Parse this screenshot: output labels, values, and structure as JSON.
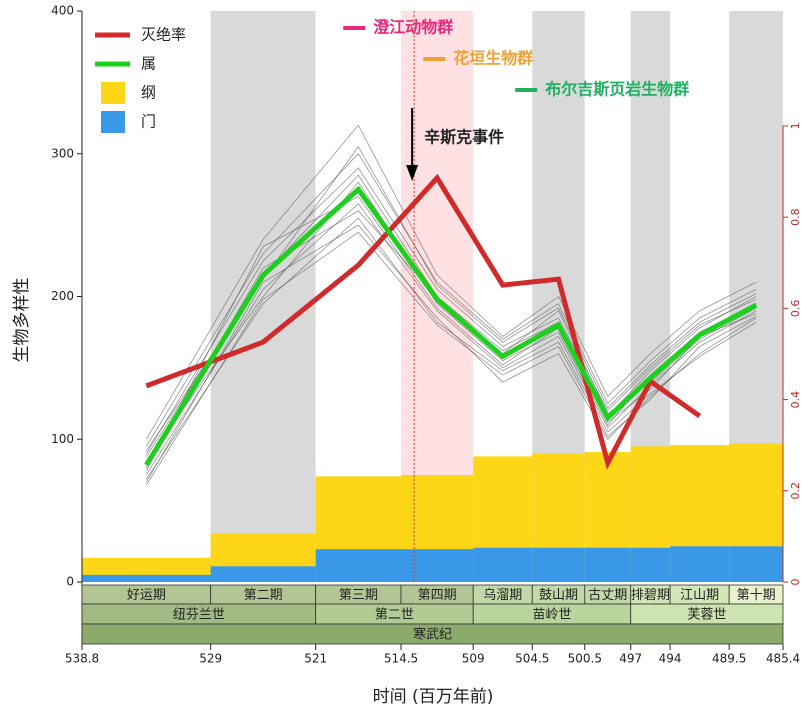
{
  "chart_data": {
    "type": "line",
    "x_label": "时间 (百万年前)",
    "y_label": "生物多样性",
    "xlim": [
      538.8,
      485.4
    ],
    "xticks": [
      538.8,
      529,
      521,
      514.5,
      509,
      504.5,
      500.5,
      497,
      494,
      489.5,
      485.4
    ],
    "ylim": [
      0,
      400
    ],
    "yticks": [
      0,
      100,
      200,
      300,
      400
    ],
    "y2lim": [
      0,
      1.252
    ],
    "y2ticks": [
      0,
      0.2,
      0.4,
      0.6,
      0.8,
      1
    ],
    "y2_color": "#c0282a",
    "x": [
      533.9,
      525,
      517.75,
      511.75,
      506.75,
      502.5,
      498.75,
      495.5,
      491.75,
      487.45
    ],
    "series": [
      {
        "name": "灭绝率",
        "color": "#d12a2a",
        "axis": "y2",
        "values": [
          0.43,
          0.526,
          0.695,
          0.886,
          0.651,
          0.664,
          0.261,
          0.44,
          0.364,
          null
        ]
      },
      {
        "name": "属",
        "color": "#1ed01e",
        "values": [
          82,
          215,
          275,
          198,
          158,
          180,
          115,
          143,
          173,
          194
        ]
      }
    ],
    "areas": [
      {
        "name": "纲",
        "color": "#fdd617",
        "values": [
          17,
          34,
          74,
          75,
          88,
          90,
          91,
          95,
          96,
          97
        ]
      },
      {
        "name": "门",
        "color": "#3a98e8",
        "values": [
          5,
          11,
          23,
          23,
          24,
          24,
          24,
          24,
          25,
          25
        ]
      }
    ],
    "simulations": {
      "color": "#555555",
      "lines": [
        [
          75,
          205,
          265,
          190,
          150,
          172,
          108,
          138,
          168,
          190
        ],
        [
          90,
          225,
          290,
          205,
          165,
          185,
          120,
          150,
          180,
          198
        ],
        [
          70,
          210,
          250,
          185,
          140,
          160,
          100,
          130,
          160,
          185
        ],
        [
          95,
          230,
          300,
          210,
          170,
          195,
          125,
          155,
          185,
          205
        ],
        [
          85,
          200,
          280,
          195,
          155,
          175,
          110,
          145,
          175,
          195
        ],
        [
          80,
          220,
          260,
          200,
          160,
          190,
          118,
          140,
          170,
          192
        ],
        [
          100,
          240,
          320,
          215,
          172,
          200,
          130,
          160,
          190,
          210
        ],
        [
          72,
          195,
          255,
          182,
          148,
          168,
          105,
          132,
          158,
          182
        ],
        [
          88,
          215,
          285,
          200,
          162,
          182,
          116,
          148,
          178,
          200
        ],
        [
          78,
          235,
          270,
          192,
          152,
          178,
          112,
          135,
          172,
          188
        ],
        [
          92,
          212,
          305,
          208,
          168,
          192,
          122,
          152,
          182,
          202
        ],
        [
          68,
          198,
          245,
          180,
          145,
          165,
          102,
          128,
          165,
          186
        ]
      ]
    },
    "stages": [
      {
        "name": "好运期",
        "start": 538.8,
        "end": 529,
        "background": "#ffffff",
        "color": "#b3c594"
      },
      {
        "name": "第二期",
        "start": 529,
        "end": 521,
        "background": "#d9d9d9",
        "color": "#b3c594"
      },
      {
        "name": "第三期",
        "start": 521,
        "end": 514.5,
        "background": "#ffffff",
        "color": "#b3c594"
      },
      {
        "name": "第四期",
        "start": 514.5,
        "end": 509,
        "background": "#ffe1e4",
        "color": "#b3c594"
      },
      {
        "name": "乌溜期",
        "start": 509,
        "end": 504.5,
        "background": "#ffffff",
        "color": "#c3d8a8"
      },
      {
        "name": "鼓山期",
        "start": 504.5,
        "end": 500.5,
        "background": "#d9d9d9",
        "color": "#c3d8a8"
      },
      {
        "name": "古丈期",
        "start": 500.5,
        "end": 497,
        "background": "#ffffff",
        "color": "#c3d8a8"
      },
      {
        "name": "排碧期",
        "start": 497,
        "end": 494,
        "background": "#d9d9d9",
        "color": "#d3e6b8"
      },
      {
        "name": "江山期",
        "start": 494,
        "end": 489.5,
        "background": "#ffffff",
        "color": "#d3e6b8"
      },
      {
        "name": "第十期",
        "start": 489.5,
        "end": 485.4,
        "background": "#d9d9d9",
        "color": "#e8f2cc"
      }
    ],
    "epochs": [
      {
        "name": "纽芬兰世",
        "start": 538.8,
        "end": 521,
        "color": "#a2bb84"
      },
      {
        "name": "第二世",
        "start": 521,
        "end": 509,
        "color": "#b2cb94"
      },
      {
        "name": "苗岭世",
        "start": 509,
        "end": 497,
        "color": "#b8d59e"
      },
      {
        "name": "芙蓉世",
        "start": 497,
        "end": 485.4,
        "color": "#cde4b0"
      }
    ],
    "period": {
      "name": "寒武纪",
      "start": 538.8,
      "end": 485.4,
      "color": "#8bab6b"
    },
    "event": {
      "label": "辛斯克事件",
      "age": 513.5,
      "color": "#e03030"
    },
    "biotas": [
      {
        "label": "澄江动物群",
        "age": 518.9,
        "color": "#e8287a"
      },
      {
        "label": "花垣生物群",
        "age": 512.8,
        "color": "#f0a030"
      },
      {
        "label": "布尔吉斯页岩生物群",
        "age": 505.8,
        "color": "#20b060"
      }
    ]
  }
}
